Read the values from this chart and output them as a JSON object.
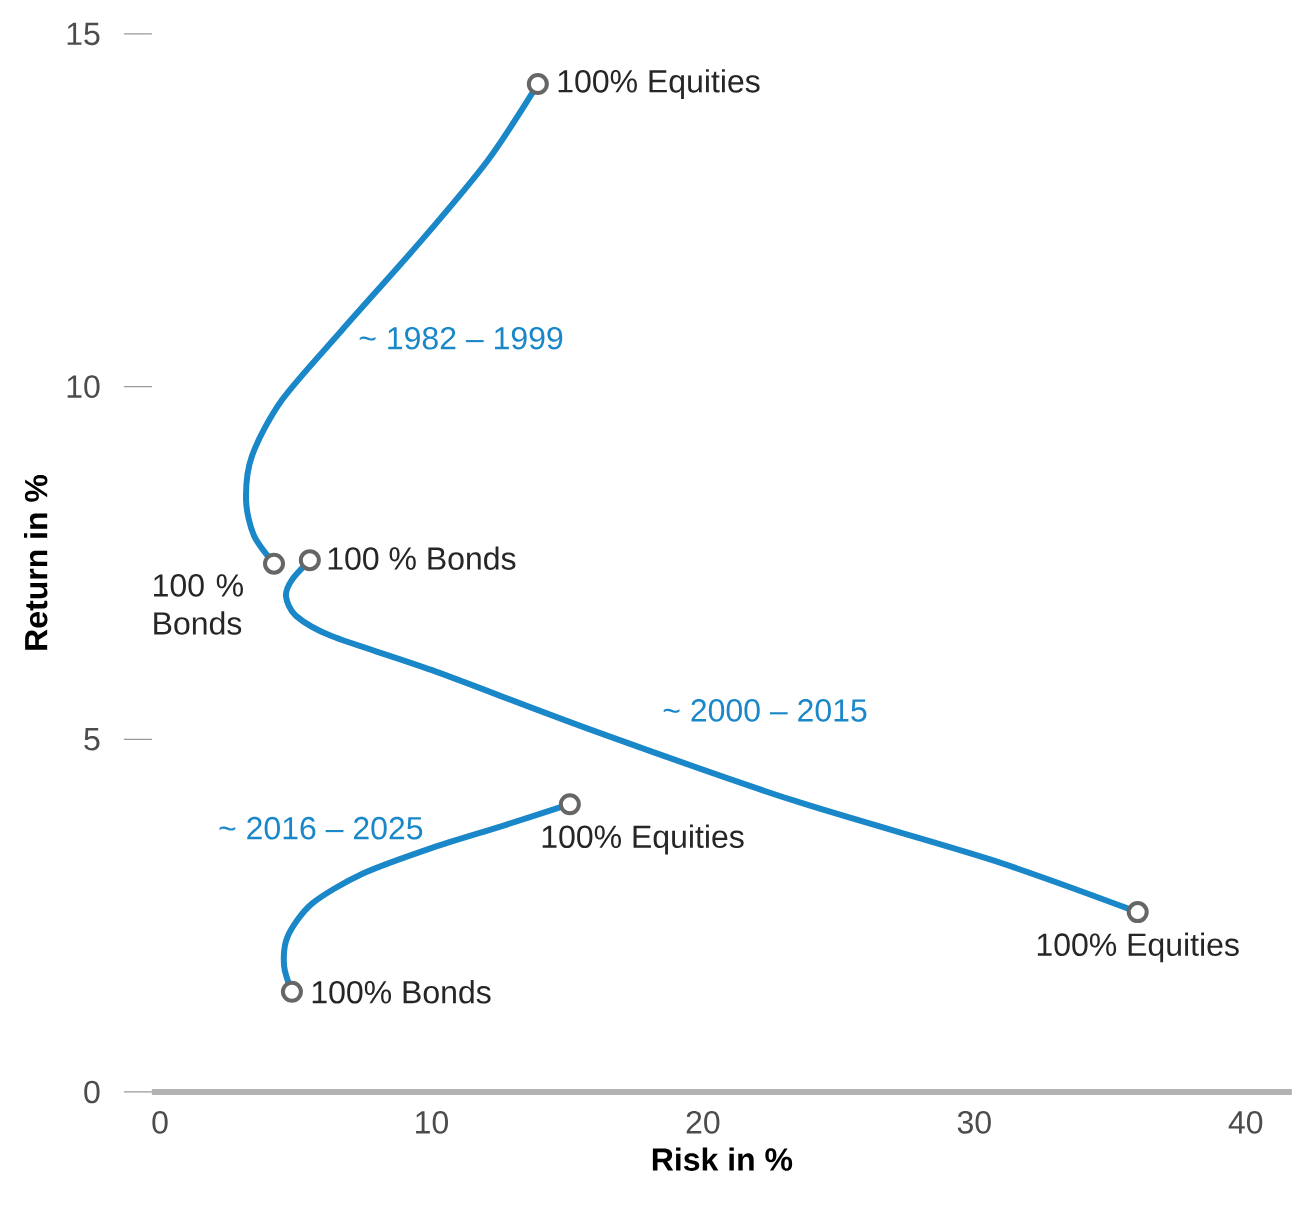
{
  "chart_data": {
    "type": "line",
    "xlabel": "Risk in %",
    "ylabel": "Return in %",
    "xlim": [
      -0.3,
      41.7
    ],
    "ylim": [
      0,
      15
    ],
    "xticks": [
      0,
      10,
      20,
      30,
      40
    ],
    "yticks": [
      0,
      5,
      10,
      15
    ],
    "marker": "none",
    "series": [
      {
        "name": "~ 1982 – 1999",
        "color": "#1a87c8",
        "x": [
          4.2,
          3.46,
          3.17,
          3.39,
          4.49,
          6.7,
          9.65,
          12.08,
          13.92
        ],
        "values": [
          7.49,
          7.89,
          8.39,
          9.02,
          9.81,
          10.8,
          12.08,
          13.21,
          14.29
        ]
      },
      {
        "name": "~ 2000 – 2015",
        "color": "#1a87c8",
        "x": [
          5.52,
          4.86,
          4.64,
          5.01,
          6.34,
          10.02,
          15.91,
          23.28,
          30.64,
          36.02
        ],
        "values": [
          7.54,
          7.26,
          7.03,
          6.75,
          6.46,
          5.98,
          5.13,
          4.14,
          3.29,
          2.55
        ]
      },
      {
        "name": "~ 2016 – 2025",
        "color": "#1a87c8",
        "x": [
          4.86,
          4.57,
          4.71,
          5.6,
          7.44,
          10.02,
          12.6,
          15.1
        ],
        "values": [
          1.42,
          1.79,
          2.21,
          2.67,
          3.09,
          3.46,
          3.77,
          4.08
        ]
      },
      {
        "type": "scatter",
        "marker": "circle",
        "color": "#666666",
        "x": [
          13.92,
          5.52,
          4.2,
          36.02,
          15.1,
          4.86
        ],
        "values": [
          14.29,
          7.54,
          7.49,
          2.55,
          4.08,
          1.42
        ]
      }
    ],
    "annotations": [
      {
        "text": "100% Equities",
        "x": 13.92,
        "y": 14.29
      },
      {
        "text": "100 % Bonds",
        "x": 5.52,
        "y": 7.54
      },
      {
        "text": "100 % Bonds",
        "x": 4.2,
        "y": 7.49
      },
      {
        "text": "100% Equities",
        "x": 36.02,
        "y": 2.55
      },
      {
        "text": "100% Equities",
        "x": 15.1,
        "y": 4.08
      },
      {
        "text": "100% Bonds",
        "x": 4.86,
        "y": 1.42
      }
    ]
  }
}
